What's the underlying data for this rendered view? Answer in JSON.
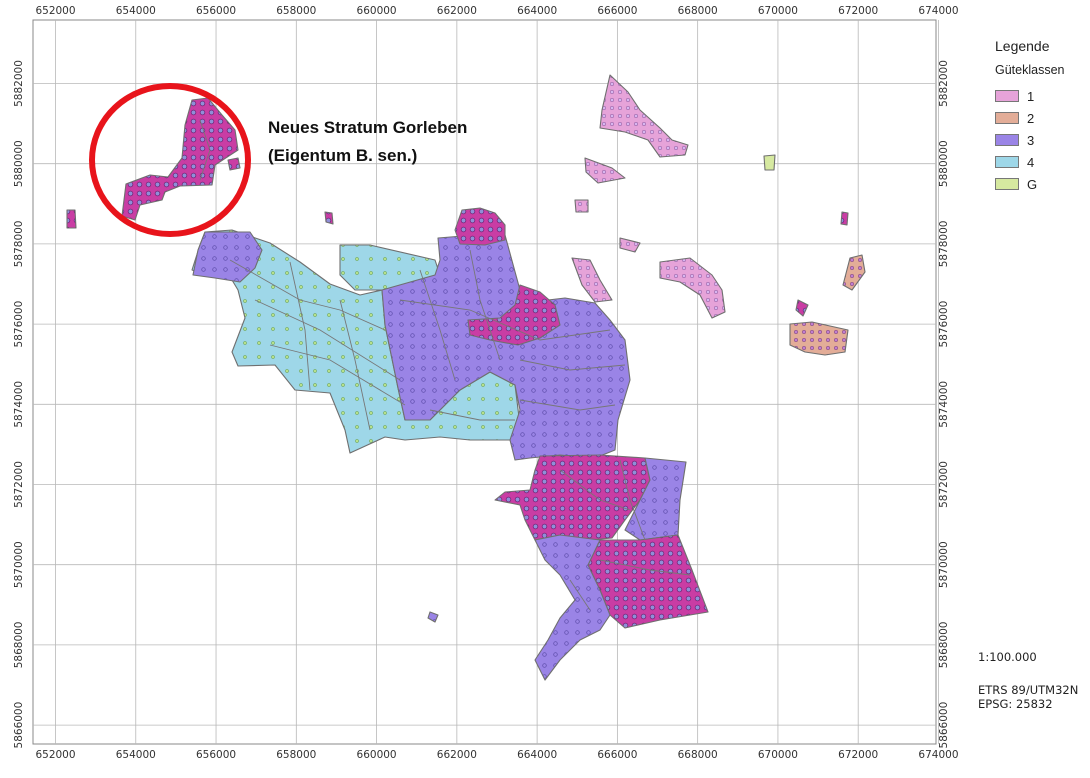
{
  "map": {
    "x_ticks": [
      "652000",
      "654000",
      "656000",
      "658000",
      "660000",
      "662000",
      "664000",
      "666000",
      "668000",
      "670000",
      "672000",
      "674000"
    ],
    "y_ticks": [
      "5882000",
      "5880000",
      "5878000",
      "5876000",
      "5874000",
      "5872000",
      "5870000",
      "5868000",
      "5866000"
    ],
    "annotation": {
      "line1": "Neues Stratum Gorleben",
      "line2": "(Eigentum B. sen.)"
    }
  },
  "legend": {
    "title": "Legende",
    "subtitle": "Güteklassen",
    "items": [
      {
        "label": "1",
        "color": "#e6a3d9"
      },
      {
        "label": "2",
        "color": "#e3ad98"
      },
      {
        "label": "3",
        "color": "#9a84e6"
      },
      {
        "label": "4",
        "color": "#9ed7e8"
      },
      {
        "label": "G",
        "color": "#d6e9a0"
      }
    ]
  },
  "scale": "1:100.000",
  "crs": {
    "line1": "ETRS 89/UTM32N",
    "line2": "EPSG: 25832"
  },
  "colors": {
    "class1": "#e6a3d9",
    "class2": "#e3ad98",
    "class3": "#9a84e6",
    "class4": "#9ed7e8",
    "classG": "#d6e9a0",
    "sample_point": "#b51c8b",
    "highlight_circle": "#e8141b"
  }
}
